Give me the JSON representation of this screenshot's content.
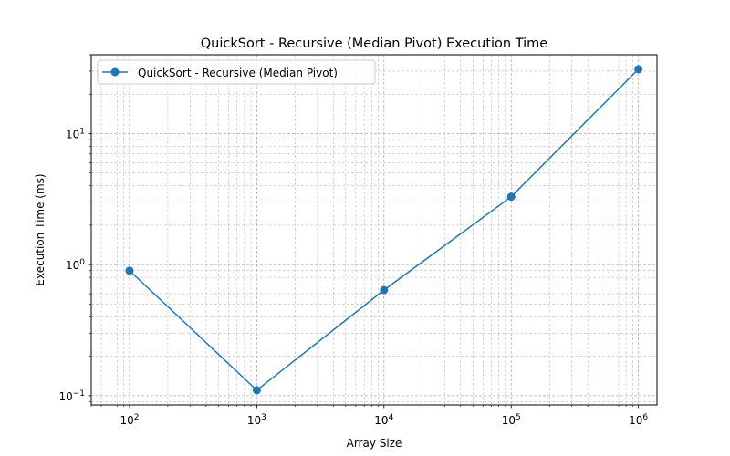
{
  "chart_data": {
    "type": "line",
    "title": "QuickSort - Recursive (Median Pivot) Execution Time",
    "xlabel": "Array Size",
    "ylabel": "Execution Time (ms)",
    "xscale": "log",
    "yscale": "log",
    "x": [
      100,
      1000,
      10000,
      100000,
      1000000
    ],
    "series": [
      {
        "name": "QuickSort - Recursive (Median Pivot)",
        "values": [
          0.9,
          0.11,
          0.64,
          3.3,
          31.0
        ],
        "color": "#1f77b4",
        "marker": "circle"
      }
    ],
    "xlim": [
      50,
      1400000
    ],
    "ylim": [
      0.085,
      40
    ],
    "x_ticks": [
      {
        "value": 100,
        "base": "10",
        "exp": "2"
      },
      {
        "value": 1000,
        "base": "10",
        "exp": "3"
      },
      {
        "value": 10000,
        "base": "10",
        "exp": "4"
      },
      {
        "value": 100000,
        "base": "10",
        "exp": "5"
      },
      {
        "value": 1000000,
        "base": "10",
        "exp": "6"
      }
    ],
    "y_ticks": [
      {
        "value": 0.1,
        "base": "10",
        "exp": "−1"
      },
      {
        "value": 1,
        "base": "10",
        "exp": "0"
      },
      {
        "value": 10,
        "base": "10",
        "exp": "1"
      }
    ],
    "grid": true,
    "grid_which": "both",
    "legend_position": "upper-left"
  }
}
